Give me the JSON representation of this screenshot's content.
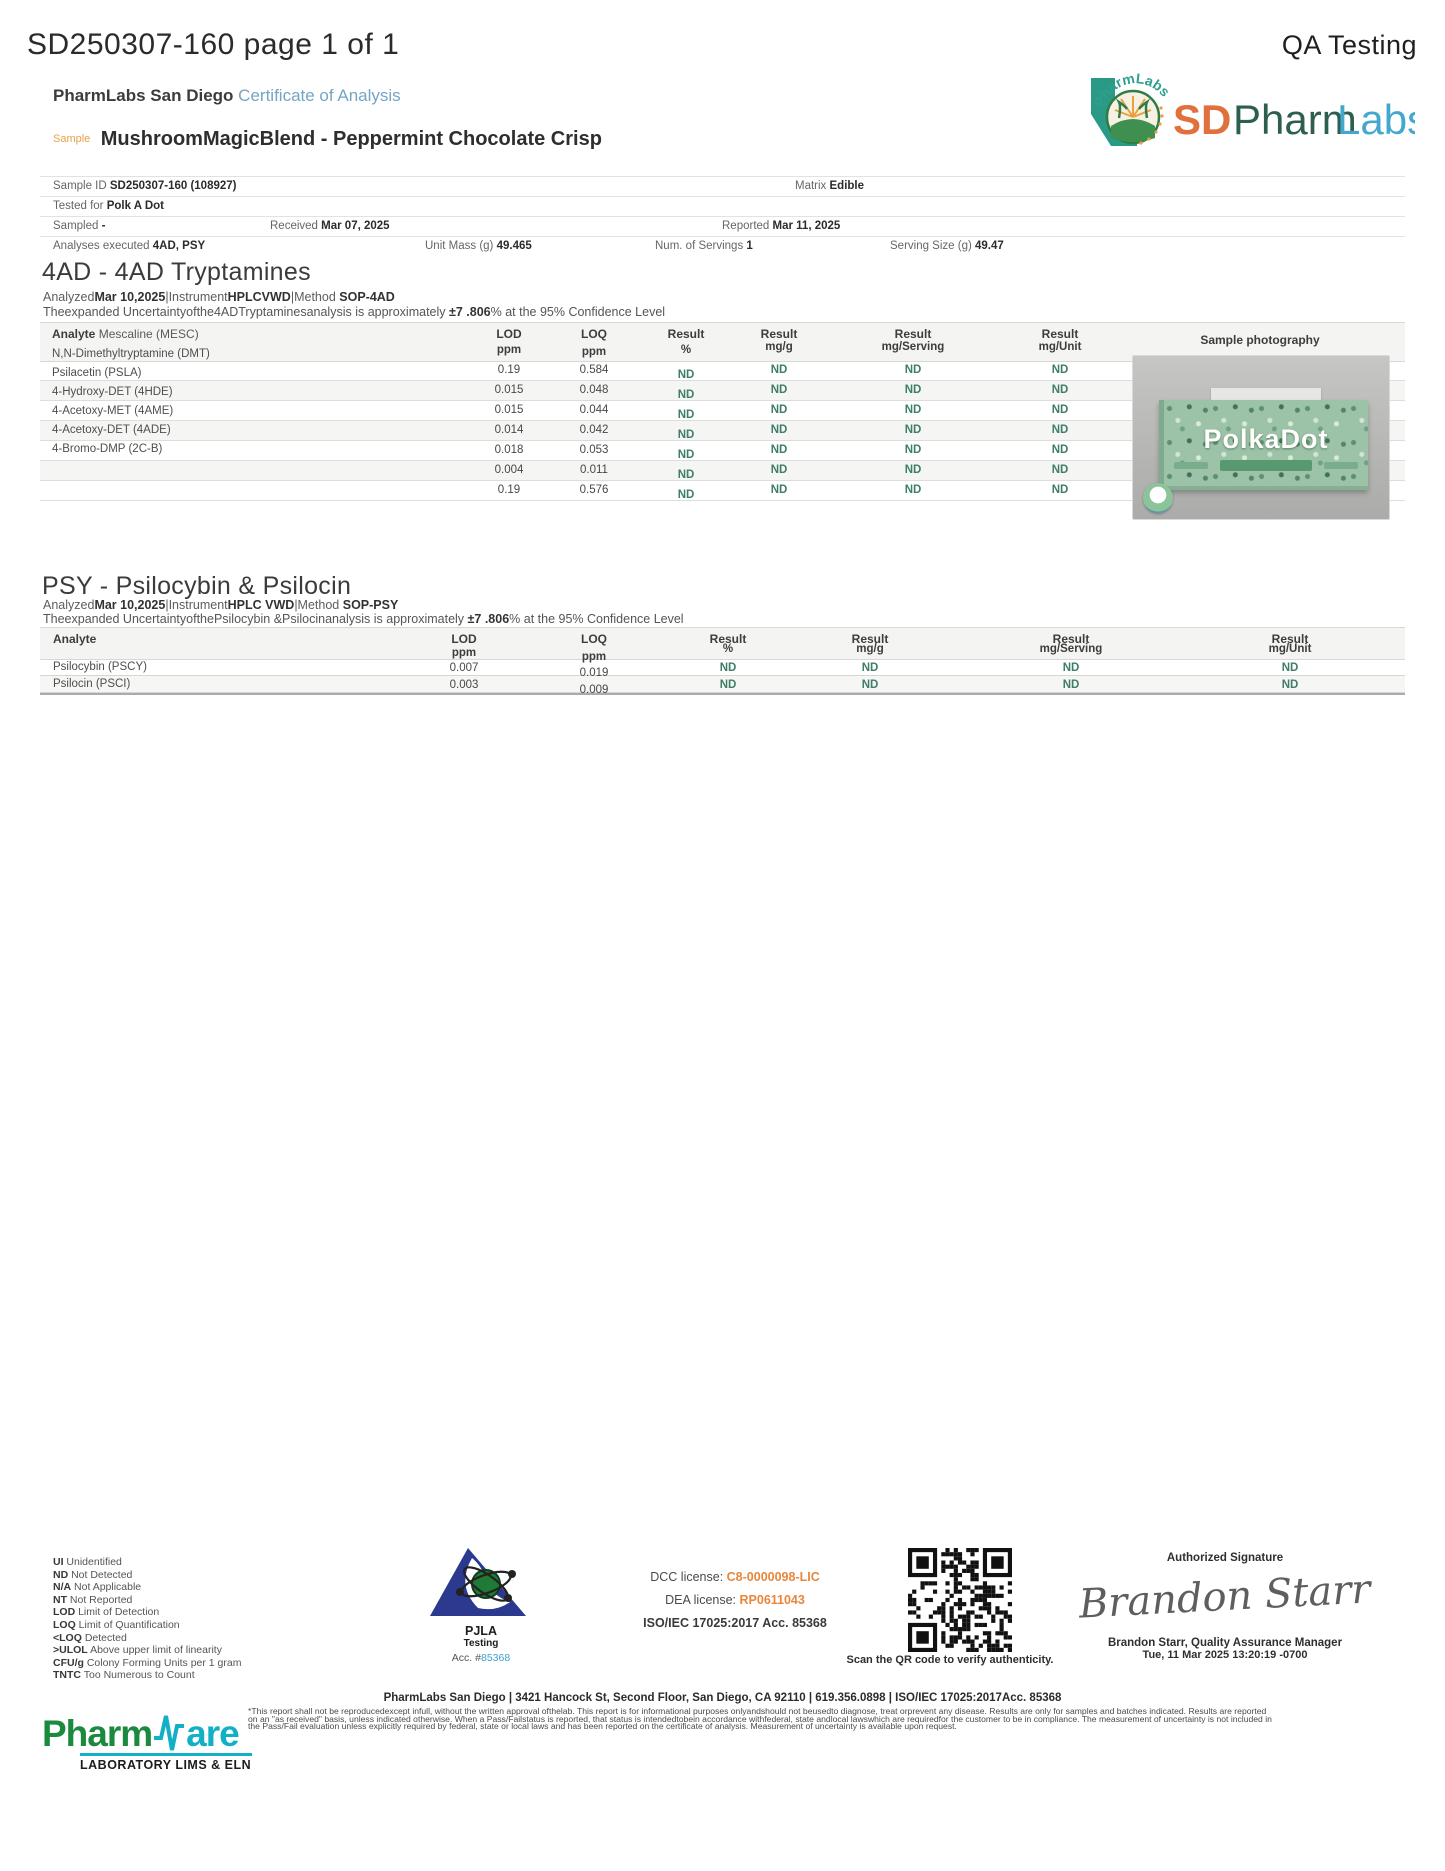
{
  "header": {
    "doc_id": "SD250307-160 page 1 of 1",
    "qa_label": "QA Testing",
    "lab_name": "PharmLabs San Diego",
    "coa_label": "Certificate of Analysis",
    "sample_label": "Sample",
    "sample_name": "MushroomMagicBlend - Peppermint Chocolate Crisp"
  },
  "logo": {
    "arc_text": "PharmLabs",
    "sd": "SD",
    "pharm": "Pharm",
    "labs": "Labs"
  },
  "meta": {
    "sample_id_label": "Sample ID",
    "sample_id": "SD250307-160 (108927)",
    "matrix_label": "Matrix",
    "matrix": "Edible",
    "tested_for_label": "Tested for",
    "tested_for": "Polk A Dot",
    "sampled_label": "Sampled",
    "sampled": "-",
    "received_label": "Received",
    "received": "Mar 07, 2025",
    "reported_label": "Reported",
    "reported": "Mar 11, 2025",
    "analyses_label": "Analyses executed",
    "analyses": "4AD, PSY",
    "unit_mass_label": "Unit Mass (g)",
    "unit_mass": "49.465",
    "servings_label": "Num. of Servings",
    "servings": "1",
    "serving_size_label": "Serving Size (g)",
    "serving_size": "49.47"
  },
  "tryptamines": {
    "title": "4AD - 4AD Tryptamines",
    "analyzed_label": "Analyzed",
    "analyzed": "Mar 10,2025",
    "instrument_label": "|Instrument",
    "instrument": "HPLCVWD",
    "method_label": "|Method ",
    "method": "SOP-4AD",
    "unc_prefix": "Theexpanded Uncertaintyofthe4ADTryptaminesanalysis is approximately ",
    "unc_value": "±7 .806",
    "unc_suffix": "% at the 95% Confidence Level",
    "col_analyte": "Analyte",
    "first_analyte": "Mescaline (MESC)",
    "col_lod": "LOD",
    "col_loq": "LOQ",
    "col_ppm": "ppm",
    "col_result": "Result",
    "col_pct": "%",
    "col_mgg": "mg/g",
    "col_mgserving": "mg/Serving",
    "col_mgunit": "mg/Unit",
    "col_photo": "Sample photography",
    "labels": [
      "N,N-Dimethyltryptamine (DMT)",
      "Psilacetin (PSLA)",
      "4-Hydroxy-DET (4HDE)",
      "4-Acetoxy-MET (4AME)",
      "4-Acetoxy-DET (4ADE)",
      "4-Bromo-DMP (2C-B)"
    ],
    "rows": [
      {
        "lod": "0.19",
        "loq": "0.584",
        "pct": "ND",
        "mgg": "ND",
        "mgsrv": "ND",
        "mgunit": "ND"
      },
      {
        "lod": "0.015",
        "loq": "0.048",
        "pct": "ND",
        "mgg": "ND",
        "mgsrv": "ND",
        "mgunit": "ND"
      },
      {
        "lod": "0.015",
        "loq": "0.044",
        "pct": "ND",
        "mgg": "ND",
        "mgsrv": "ND",
        "mgunit": "ND"
      },
      {
        "lod": "0.014",
        "loq": "0.042",
        "pct": "ND",
        "mgg": "ND",
        "mgsrv": "ND",
        "mgunit": "ND"
      },
      {
        "lod": "0.018",
        "loq": "0.053",
        "pct": "ND",
        "mgg": "ND",
        "mgsrv": "ND",
        "mgunit": "ND"
      },
      {
        "lod": "0.004",
        "loq": "0.011",
        "pct": "ND",
        "mgg": "ND",
        "mgsrv": "ND",
        "mgunit": "ND"
      },
      {
        "lod": "0.19",
        "loq": "0.576",
        "pct": "ND",
        "mgg": "ND",
        "mgsrv": "ND",
        "mgunit": "ND"
      }
    ]
  },
  "photo": {
    "product_text": "PolkaDot"
  },
  "psy": {
    "title": "PSY - Psilocybin & Psilocin",
    "analyzed_label": "Analyzed",
    "analyzed": "Mar 10,2025",
    "instrument_label": "|Instrument",
    "instrument": "HPLC VWD",
    "method_label": "|Method ",
    "method": "SOP-PSY",
    "unc_prefix": "Theexpanded UncertaintyofthePsilocybin &Psilocinanalysis is approximately ",
    "unc_value": "±7 .806",
    "unc_suffix": "% at the 95% Confidence Level",
    "col_analyte": "Analyte",
    "col_lod": "LOD",
    "col_loq": "LOQ",
    "col_ppm": "ppm",
    "col_result": "Result",
    "col_pct": "%",
    "col_mgg": "mg/g",
    "col_mgserving": "mg/Serving",
    "col_mgunit": "mg/Unit",
    "rows": [
      {
        "analyte": "Psilocybin (PSCY)",
        "lod": "0.007",
        "loq": "0.019",
        "pct": "ND",
        "mgg": "ND",
        "mgsrv": "ND",
        "mgunit": "ND"
      },
      {
        "analyte": "Psilocin (PSCI)",
        "lod": "0.003",
        "loq": "0.009",
        "pct": "ND",
        "mgg": "ND",
        "mgsrv": "ND",
        "mgunit": "ND"
      }
    ]
  },
  "legend": [
    {
      "key": "UI",
      "desc": "Unidentified"
    },
    {
      "key": "ND",
      "desc": "Not Detected"
    },
    {
      "key": "N/A",
      "desc": "Not Applicable"
    },
    {
      "key": "NT",
      "desc": "Not Reported"
    },
    {
      "key": "LOD",
      "desc": "Limit of Detection"
    },
    {
      "key": "LOQ",
      "desc": "Limit of Quantification"
    },
    {
      "key": "<LOQ",
      "desc": "Detected"
    },
    {
      "key": ">ULOL",
      "desc": "Above upper limit of linearity"
    },
    {
      "key": "CFU/g",
      "desc": "Colony Forming Units per 1 gram"
    },
    {
      "key": "TNTC",
      "desc": "Too Numerous to Count"
    }
  ],
  "accreditation": {
    "name": "PJLA",
    "sub": "Testing",
    "acc_label": "Acc. #",
    "acc_num": "85368"
  },
  "licenses": {
    "dcc_label": "DCC license: ",
    "dcc": "C8-0000098-LIC",
    "dea_label": "DEA license: ",
    "dea": "RP0611043",
    "iso": "ISO/IEC 17025:2017 Acc. 85368"
  },
  "qr": {
    "caption": "Scan the QR code to verify authenticity."
  },
  "signature": {
    "title": "Authorized Signature",
    "script": "Brandon Starr",
    "name_line": "Brandon Starr, Quality Assurance Manager",
    "date_line": "Tue, 11 Mar 2025 13:20:19 -0700"
  },
  "footer": {
    "address": "PharmLabs San Diego | 3421 Hancock St, Second Floor, San Diego, CA 92110 | 619.356.0898 | ISO/IEC 17025:2017Acc. 85368",
    "disclaimer1": "*This report shall not be reproducedexcept infull, without the written approval ofthelab. This report is for informational purposes onlyandshould not beusedto diagnose, treat orprevent any disease. Results are only for samples and batches indicated. Results are reported",
    "disclaimer2": "on an \"as received\" basis, unless indicated otherwise. When a Pass/Failstatus is reported, that status is intendedtobein accordance withfederal, state andlocal lawswhich are requiredfor the customer to be in compliance. The measurement of uncertainty is not included in",
    "disclaimer3": "the Pass/Fail evaluation unless explicitly required by federal, state or local laws and has been reported on the certificate of analysis. Measurement of uncertainty is available upon request.",
    "pw_part1": "Pharm",
    "pw_part2": "are",
    "pw_sub": "LABORATORY LIMS & ELN"
  },
  "colors": {
    "coa_blue": "#74a5c4",
    "sample_orange": "#e7a04a",
    "nd_green": "#3e7e68",
    "license_orange": "#e8863b",
    "acc_blue": "#3f9fd0",
    "pjla_blue": "#2b3a8f",
    "logo_teal": "#2a9a86",
    "logo_sd_orange": "#e0703d",
    "logo_labs_blue": "#44a7cf",
    "pharmware_green": "#1b8a3e",
    "pharmware_teal": "#12b0c4"
  }
}
